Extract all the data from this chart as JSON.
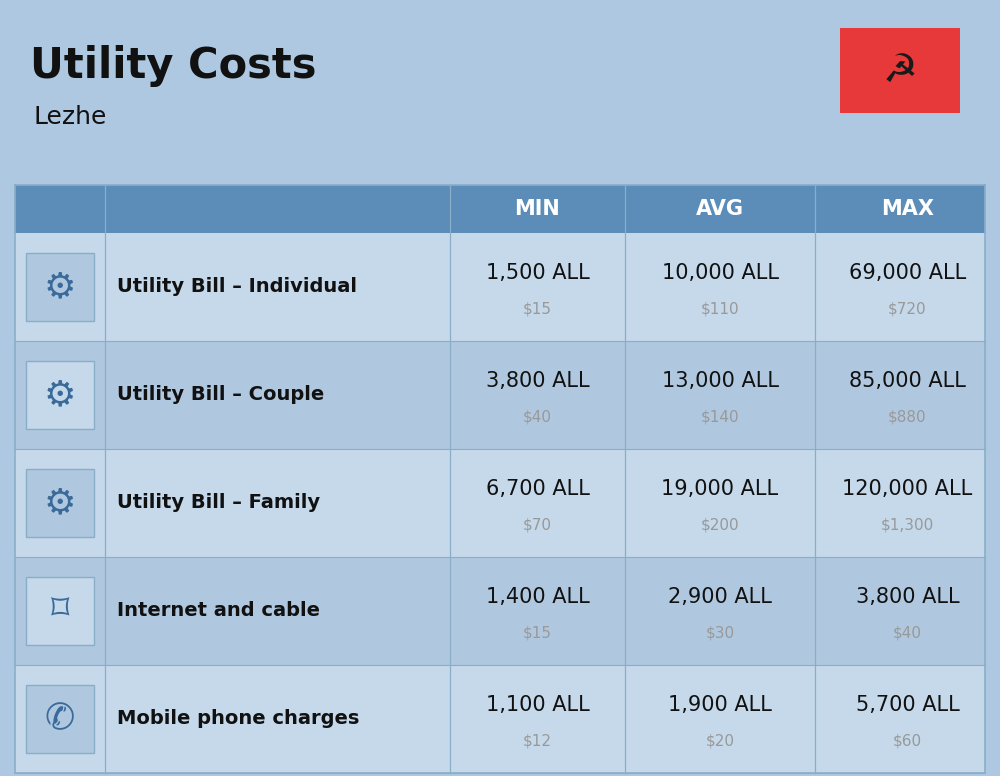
{
  "title": "Utility Costs",
  "subtitle": "Lezhe",
  "background_color": "#adc8e0",
  "header_color": "#5b8db8",
  "header_text_color": "#ffffff",
  "row_color_odd": "#c5d9eb",
  "row_color_even": "#b0c8df",
  "divider_color": "#8aaec8",
  "text_color_main": "#111111",
  "text_color_sub": "#999999",
  "columns": [
    "MIN",
    "AVG",
    "MAX"
  ],
  "rows": [
    {
      "label": "Utility Bill – Individual",
      "min_all": "1,500 ALL",
      "min_usd": "$15",
      "avg_all": "10,000 ALL",
      "avg_usd": "$110",
      "max_all": "69,000 ALL",
      "max_usd": "$720"
    },
    {
      "label": "Utility Bill – Couple",
      "min_all": "3,800 ALL",
      "min_usd": "$40",
      "avg_all": "13,000 ALL",
      "avg_usd": "$140",
      "max_all": "85,000 ALL",
      "max_usd": "$880"
    },
    {
      "label": "Utility Bill – Family",
      "min_all": "6,700 ALL",
      "min_usd": "$70",
      "avg_all": "19,000 ALL",
      "avg_usd": "$200",
      "max_all": "120,000 ALL",
      "max_usd": "$1,300"
    },
    {
      "label": "Internet and cable",
      "min_all": "1,400 ALL",
      "min_usd": "$15",
      "avg_all": "2,900 ALL",
      "avg_usd": "$30",
      "max_all": "3,800 ALL",
      "max_usd": "$40"
    },
    {
      "label": "Mobile phone charges",
      "min_all": "1,100 ALL",
      "min_usd": "$12",
      "avg_all": "1,900 ALL",
      "avg_usd": "$20",
      "max_all": "5,700 ALL",
      "max_usd": "$60"
    }
  ],
  "flag_red": "#e8393a",
  "title_fontsize": 30,
  "subtitle_fontsize": 18,
  "header_fontsize": 15,
  "label_fontsize": 14,
  "value_fontsize": 15,
  "sub_value_fontsize": 11,
  "fig_width": 10.0,
  "fig_height": 7.76
}
